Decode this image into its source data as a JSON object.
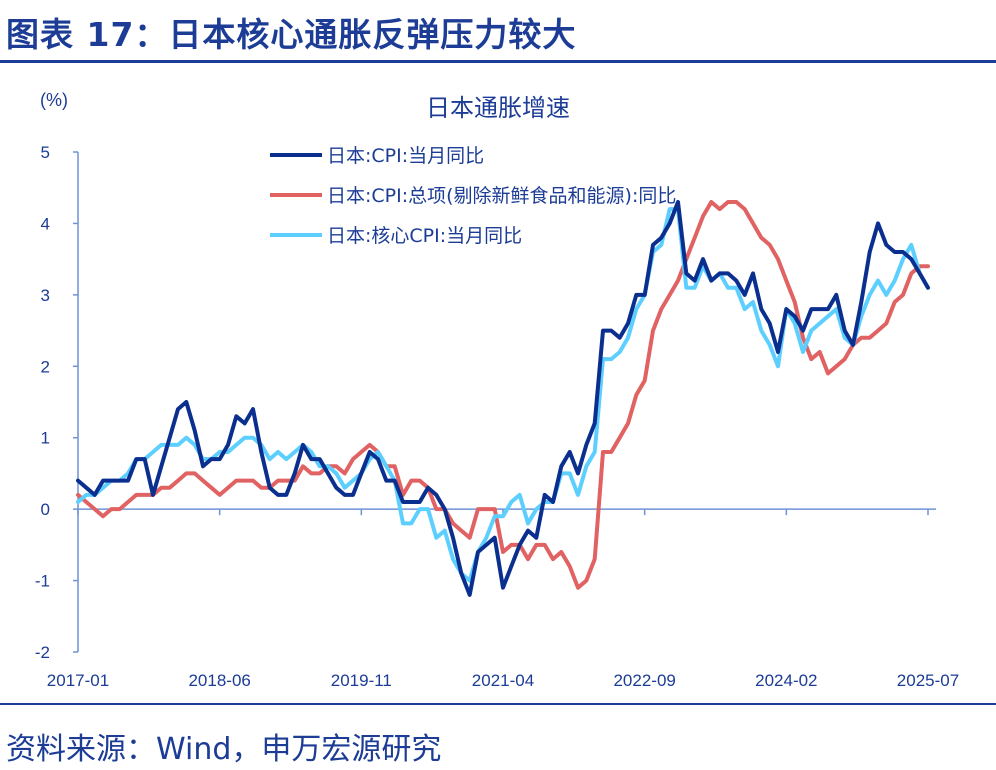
{
  "header": {
    "title": "图表 17：日本核心通胀反弹压力较大"
  },
  "footer": {
    "source": "资料来源：Wind，申万宏源研究"
  },
  "chart_data": {
    "type": "line",
    "title": "日本通胀增速",
    "ylabel": "(%)",
    "xlabel": "",
    "ylim": [
      -2,
      5
    ],
    "yticks": [
      "-2",
      "-1",
      "0",
      "1",
      "2",
      "3",
      "4",
      "5"
    ],
    "x_start": "2017-01",
    "x_end": "2025-07",
    "xticks": [
      "2017-01",
      "2018-06",
      "2019-11",
      "2021-04",
      "2022-09",
      "2024-02",
      "2025-07"
    ],
    "grid": false,
    "legend": "top-center",
    "series": [
      {
        "name": "日本:CPI:当月同比",
        "color": "#0a2f8f",
        "values": [
          0.4,
          0.3,
          0.2,
          0.4,
          0.4,
          0.4,
          0.4,
          0.7,
          0.7,
          0.2,
          0.6,
          1.0,
          1.4,
          1.5,
          1.1,
          0.6,
          0.7,
          0.7,
          0.9,
          1.3,
          1.2,
          1.4,
          0.8,
          0.3,
          0.2,
          0.2,
          0.5,
          0.9,
          0.7,
          0.7,
          0.5,
          0.3,
          0.2,
          0.2,
          0.5,
          0.8,
          0.7,
          0.4,
          0.4,
          0.1,
          0.1,
          0.1,
          0.3,
          0.2,
          0.0,
          -0.4,
          -0.9,
          -1.2,
          -0.6,
          -0.5,
          -0.4,
          -1.1,
          -0.8,
          -0.5,
          -0.3,
          -0.4,
          0.2,
          0.1,
          0.6,
          0.8,
          0.5,
          0.9,
          1.2,
          2.5,
          2.5,
          2.4,
          2.6,
          3.0,
          3.0,
          3.7,
          3.8,
          4.0,
          4.3,
          3.3,
          3.2,
          3.5,
          3.2,
          3.3,
          3.3,
          3.2,
          3.0,
          3.3,
          2.8,
          2.6,
          2.2,
          2.8,
          2.7,
          2.5,
          2.8,
          2.8,
          2.8,
          3.0,
          2.5,
          2.3,
          2.9,
          3.6,
          4.0,
          3.7,
          3.6,
          3.6,
          3.5,
          3.3,
          3.1
        ]
      },
      {
        "name": "日本:CPI:总项(剔除新鲜食品和能源):同比",
        "color": "#e06262",
        "values": [
          0.2,
          0.1,
          0.0,
          -0.1,
          0.0,
          0.0,
          0.1,
          0.2,
          0.2,
          0.2,
          0.3,
          0.3,
          0.4,
          0.5,
          0.5,
          0.4,
          0.3,
          0.2,
          0.3,
          0.4,
          0.4,
          0.4,
          0.3,
          0.3,
          0.4,
          0.4,
          0.4,
          0.6,
          0.5,
          0.5,
          0.6,
          0.6,
          0.5,
          0.7,
          0.8,
          0.9,
          0.8,
          0.6,
          0.6,
          0.2,
          0.4,
          0.4,
          0.3,
          0.0,
          0.0,
          -0.2,
          -0.3,
          -0.4,
          0.0,
          0.0,
          0.0,
          -0.6,
          -0.5,
          -0.5,
          -0.7,
          -0.5,
          -0.5,
          -0.7,
          -0.6,
          -0.8,
          -1.1,
          -1.0,
          -0.7,
          0.8,
          0.8,
          1.0,
          1.2,
          1.6,
          1.8,
          2.5,
          2.8,
          3.0,
          3.2,
          3.5,
          3.8,
          4.1,
          4.3,
          4.2,
          4.3,
          4.3,
          4.2,
          4.0,
          3.8,
          3.7,
          3.5,
          3.2,
          2.9,
          2.4,
          2.1,
          2.2,
          1.9,
          2.0,
          2.1,
          2.3,
          2.4,
          2.4,
          2.5,
          2.6,
          2.9,
          3.0,
          3.3,
          3.4,
          3.4
        ]
      },
      {
        "name": "日本:核心CPI:当月同比",
        "color": "#5ccfff",
        "values": [
          0.1,
          0.2,
          0.2,
          0.3,
          0.4,
          0.4,
          0.5,
          0.7,
          0.7,
          0.8,
          0.9,
          0.9,
          0.9,
          1.0,
          0.9,
          0.7,
          0.7,
          0.8,
          0.8,
          0.9,
          1.0,
          1.0,
          0.9,
          0.7,
          0.8,
          0.7,
          0.8,
          0.9,
          0.8,
          0.6,
          0.6,
          0.5,
          0.3,
          0.4,
          0.5,
          0.7,
          0.8,
          0.6,
          0.4,
          -0.2,
          -0.2,
          0.0,
          0.0,
          -0.4,
          -0.3,
          -0.7,
          -0.9,
          -1.0,
          -0.6,
          -0.4,
          -0.1,
          -0.1,
          0.1,
          0.2,
          -0.2,
          0.0,
          0.1,
          0.1,
          0.5,
          0.5,
          0.2,
          0.6,
          0.8,
          2.1,
          2.1,
          2.2,
          2.4,
          2.8,
          3.0,
          3.6,
          3.7,
          4.2,
          4.2,
          3.1,
          3.1,
          3.4,
          3.2,
          3.3,
          3.1,
          3.1,
          2.8,
          2.9,
          2.5,
          2.3,
          2.0,
          2.8,
          2.6,
          2.2,
          2.5,
          2.6,
          2.7,
          2.8,
          2.4,
          2.3,
          2.7,
          3.0,
          3.2,
          3.0,
          3.2,
          3.5,
          3.7,
          3.3,
          3.1
        ]
      }
    ]
  }
}
